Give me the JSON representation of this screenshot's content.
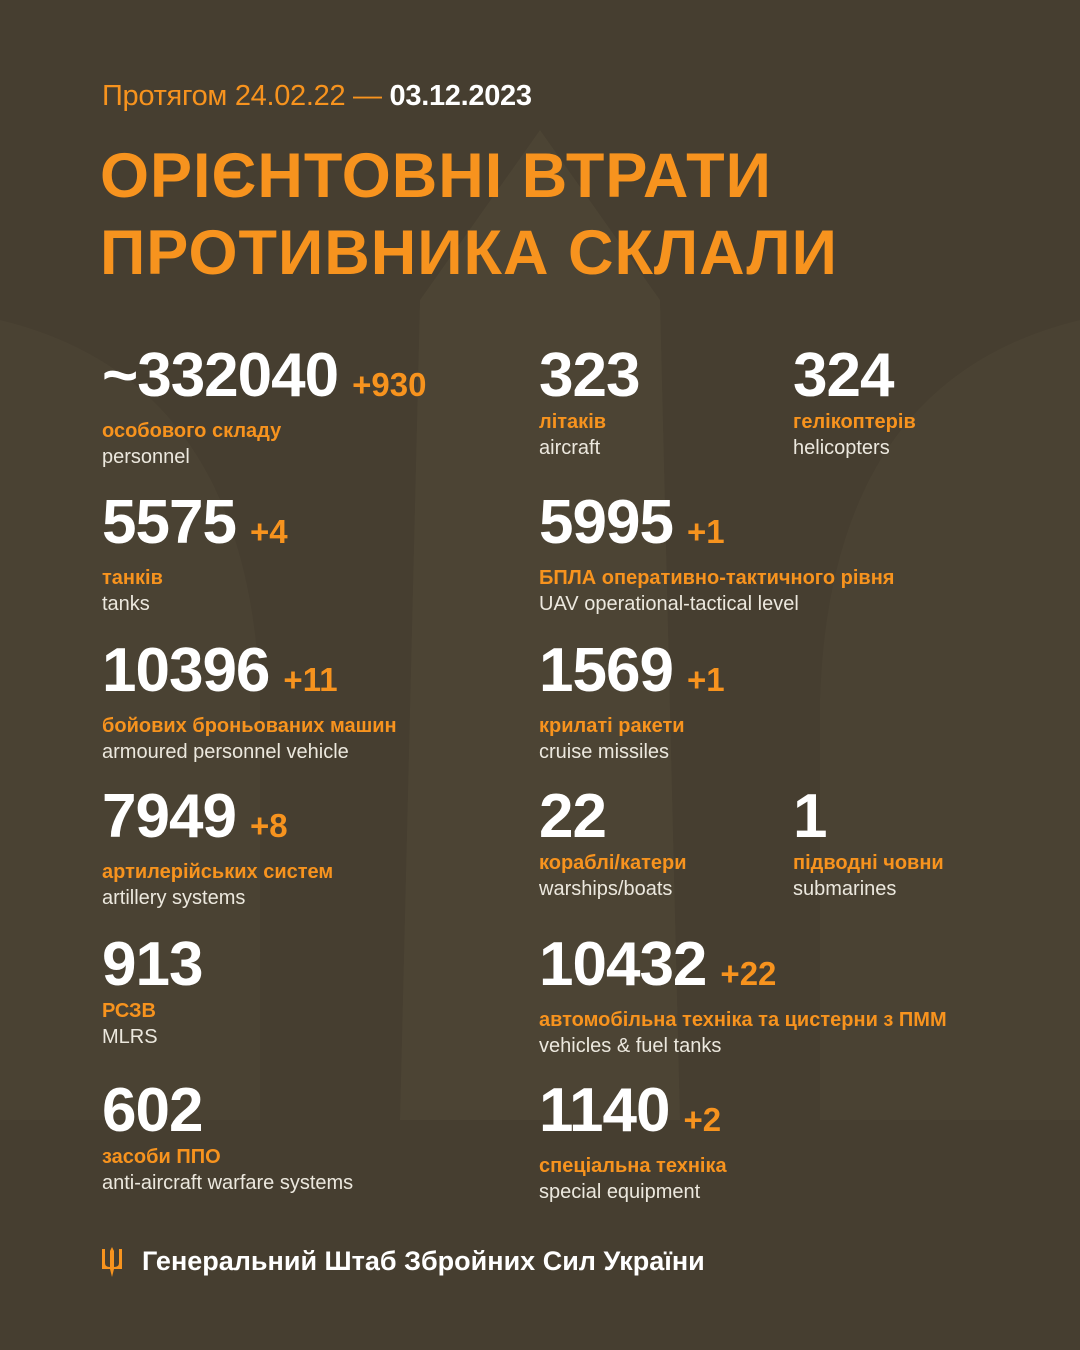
{
  "header": {
    "period_prefix": "Протягом 24.02.22 —",
    "period_end": "03.12.2023",
    "title_line1": "ОРІЄНТОВНІ ВТРАТИ",
    "title_line2": "ПРОТИВНИКА СКЛАЛИ"
  },
  "colors": {
    "background": "#463e30",
    "accent": "#f7931e",
    "text": "#ffffff"
  },
  "stats": {
    "personnel": {
      "value": "~332040",
      "delta": "+930",
      "ua": "особового складу",
      "en": "personnel"
    },
    "aircraft": {
      "value": "323",
      "ua": "літаків",
      "en": "aircraft"
    },
    "helicopters": {
      "value": "324",
      "ua": "гелікоптерів",
      "en": "helicopters"
    },
    "tanks": {
      "value": "5575",
      "delta": "+4",
      "ua": "танків",
      "en": "tanks"
    },
    "uav": {
      "value": "5995",
      "delta": "+1",
      "ua": "БПЛА оперативно-тактичного рівня",
      "en": "UAV operational-tactical level"
    },
    "apv": {
      "value": "10396",
      "delta": "+11",
      "ua": "бойових броньованих машин",
      "en": "armoured personnel vehicle"
    },
    "cruise": {
      "value": "1569",
      "delta": "+1",
      "ua": "крилаті ракети",
      "en": "cruise missiles"
    },
    "artillery": {
      "value": "7949",
      "delta": "+8",
      "ua": "артилерійських систем",
      "en": "artillery systems"
    },
    "warships": {
      "value": "22",
      "ua": "кораблі/катери",
      "en": "warships/boats"
    },
    "submarines": {
      "value": "1",
      "ua": "підводні човни",
      "en": "submarines"
    },
    "mlrs": {
      "value": "913",
      "ua": "РСЗВ",
      "en": "MLRS"
    },
    "vehicles": {
      "value": "10432",
      "delta": "+22",
      "ua": "автомобільна техніка та цистерни з ПММ",
      "en": "vehicles & fuel tanks"
    },
    "aa": {
      "value": "602",
      "ua": "засоби ППО",
      "en": "anti-aircraft warfare systems"
    },
    "special": {
      "value": "1140",
      "delta": "+2",
      "ua": "спеціальна техніка",
      "en": "special equipment"
    }
  },
  "footer": {
    "icon": "trident-icon",
    "text": "Генеральний Штаб Збройних Сил України"
  }
}
